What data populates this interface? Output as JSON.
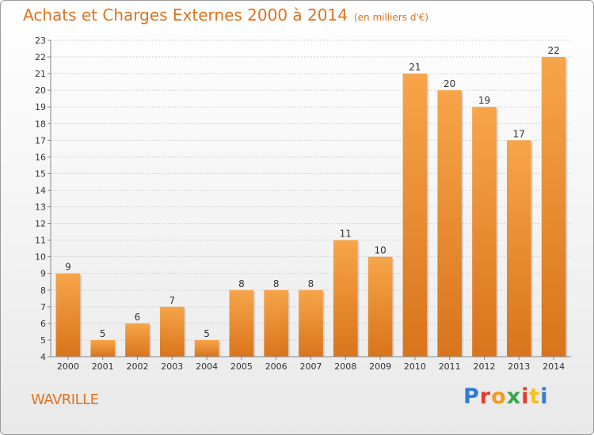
{
  "header": {
    "title": "Achats et Charges Externes 2000 à 2014",
    "subtitle": "(en milliers d'€)"
  },
  "footer": {
    "place": "WAVRILLE",
    "brand": [
      "P",
      "r",
      "o",
      "x",
      "i",
      "t",
      "i"
    ],
    "brand_colors": [
      "#2f7ad6",
      "#e63b2a",
      "#f29a1d",
      "#3aa54a",
      "#e63b2a",
      "#f2c21d",
      "#2f7ad6"
    ]
  },
  "chart_data": {
    "type": "bar",
    "categories": [
      "2000",
      "2001",
      "2002",
      "2003",
      "2004",
      "2005",
      "2006",
      "2007",
      "2008",
      "2009",
      "2010",
      "2011",
      "2012",
      "2013",
      "2014"
    ],
    "values": [
      9,
      5,
      6,
      7,
      5,
      8,
      8,
      8,
      11,
      10,
      21,
      20,
      19,
      17,
      22
    ],
    "ylim": [
      4,
      23
    ],
    "yticks": [
      4,
      5,
      6,
      7,
      8,
      9,
      10,
      11,
      12,
      13,
      14,
      15,
      16,
      17,
      18,
      19,
      20,
      21,
      22,
      23
    ],
    "grid": true,
    "bar_color_top": "#f7a54a",
    "bar_color_bottom": "#d9741b"
  }
}
